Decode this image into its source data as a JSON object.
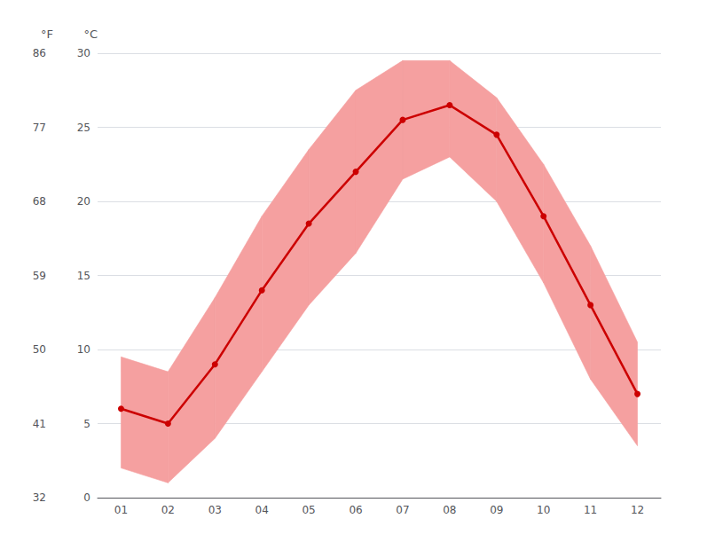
{
  "chart_data": {
    "type": "line",
    "categories": [
      "01",
      "02",
      "03",
      "04",
      "05",
      "06",
      "07",
      "08",
      "09",
      "10",
      "11",
      "12"
    ],
    "series": [
      {
        "type": "band",
        "color": "#f5a0a0",
        "low": [
          2.0,
          1.0,
          4.0,
          8.5,
          13.0,
          16.5,
          21.5,
          23.0,
          20.0,
          14.5,
          8.0,
          3.5
        ],
        "high": [
          9.5,
          8.5,
          13.5,
          19.0,
          23.5,
          27.5,
          29.5,
          29.5,
          27.0,
          22.5,
          17.0,
          10.5
        ]
      },
      {
        "type": "line",
        "color": "#cc0000",
        "marker": "circle",
        "values": [
          6.0,
          5.0,
          9.0,
          14.0,
          18.5,
          22.0,
          25.5,
          26.5,
          24.5,
          19.0,
          13.0,
          7.0
        ]
      }
    ],
    "y_label": "°C",
    "ylim": [
      0,
      30
    ],
    "yticks": [
      0,
      5,
      10,
      15,
      20,
      25,
      30
    ],
    "y2_label": "°F",
    "y2lim": [
      32,
      86
    ],
    "y2ticks": [
      32,
      41,
      50,
      59,
      68,
      77,
      86
    ],
    "grid": true
  }
}
